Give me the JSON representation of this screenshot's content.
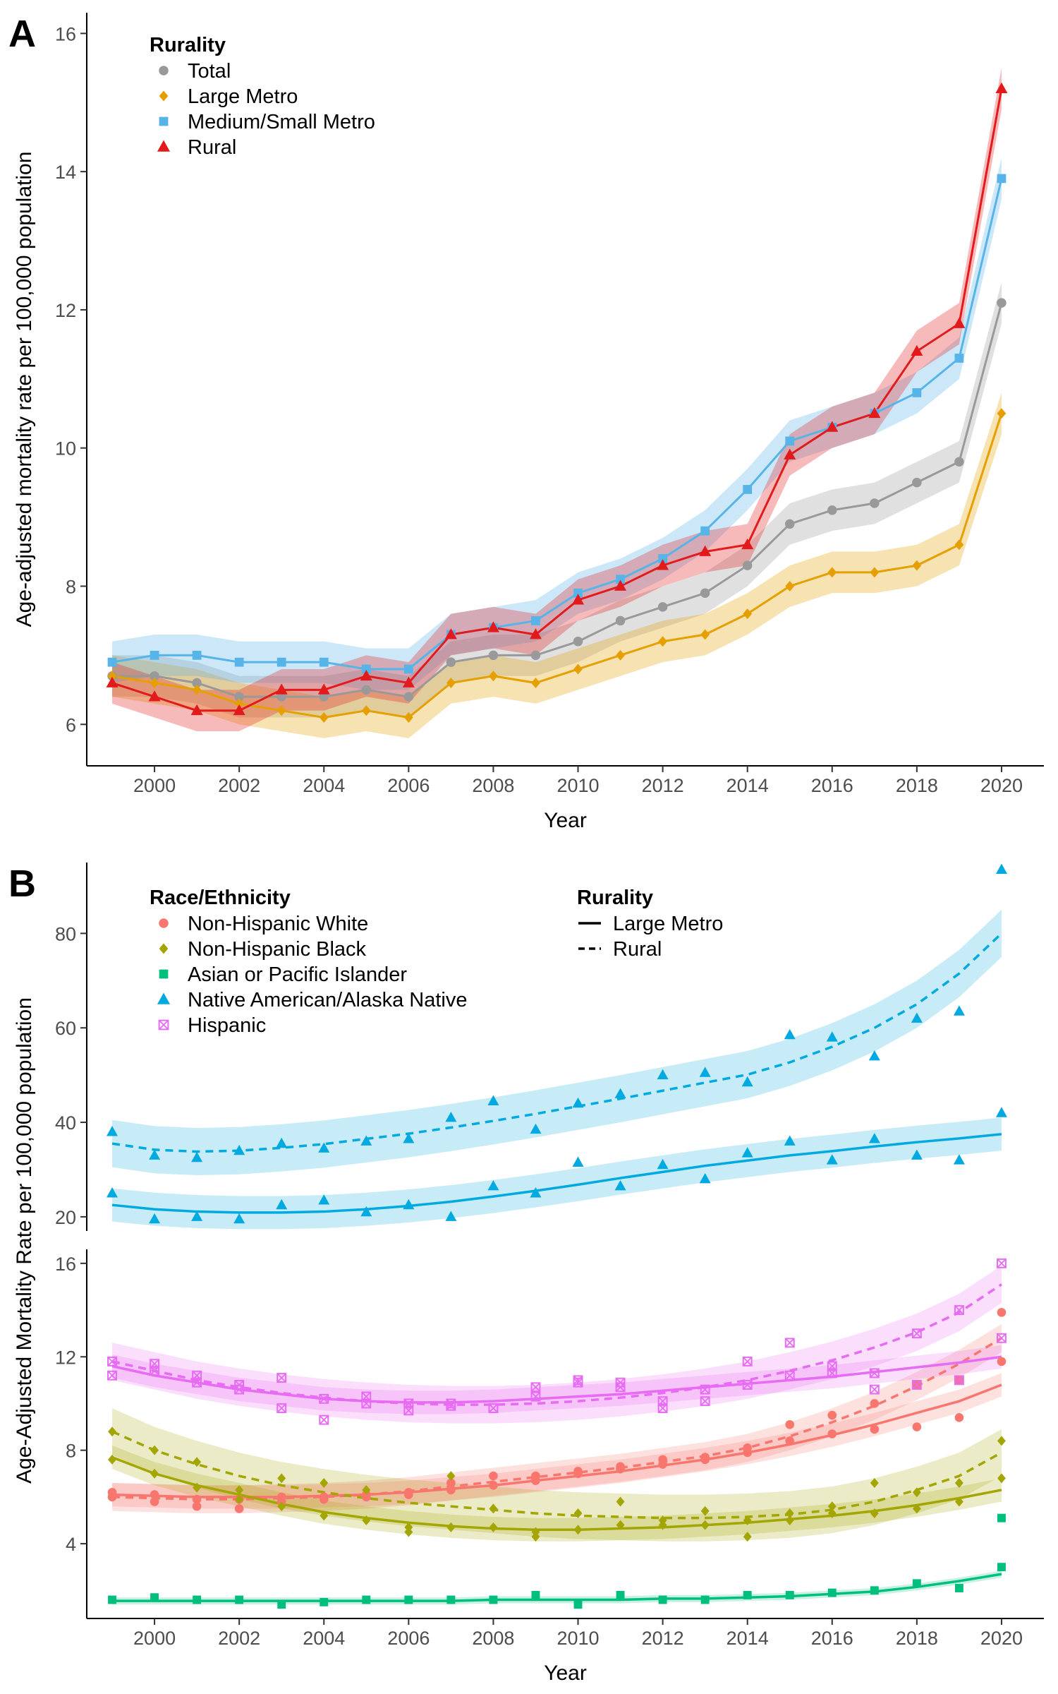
{
  "chart_data": [
    {
      "panel_label": "A",
      "type": "line",
      "xlabel": "Year",
      "ylabel": "Age-adjusted mortality rate per 100,000 population",
      "x": [
        1999,
        2000,
        2001,
        2002,
        2003,
        2004,
        2005,
        2006,
        2007,
        2008,
        2009,
        2010,
        2011,
        2012,
        2013,
        2014,
        2015,
        2016,
        2017,
        2018,
        2019,
        2020
      ],
      "x_ticks": [
        "2000",
        "2002",
        "2004",
        "2006",
        "2008",
        "2010",
        "2012",
        "2014",
        "2016",
        "2018",
        "2020"
      ],
      "y_ticks": [
        "6",
        "8",
        "10",
        "12",
        "14",
        "16"
      ],
      "xlim": [
        1998.4,
        2021
      ],
      "ylim": [
        5.4,
        16.3
      ],
      "band": 0.3,
      "legend_title": "Rurality",
      "series": [
        {
          "name": "Total",
          "color": "#999999",
          "marker": "circle",
          "values": [
            6.7,
            6.7,
            6.6,
            6.4,
            6.4,
            6.4,
            6.5,
            6.4,
            6.9,
            7.0,
            7.0,
            7.2,
            7.5,
            7.7,
            7.9,
            8.3,
            8.9,
            9.1,
            9.2,
            9.5,
            9.8,
            12.1
          ]
        },
        {
          "name": "Large Metro",
          "color": "#E69F00",
          "marker": "diamond",
          "values": [
            6.7,
            6.6,
            6.5,
            6.3,
            6.2,
            6.1,
            6.2,
            6.1,
            6.6,
            6.7,
            6.6,
            6.8,
            7.0,
            7.2,
            7.3,
            7.6,
            8.0,
            8.2,
            8.2,
            8.3,
            8.6,
            10.5
          ]
        },
        {
          "name": "Medium/Small Metro",
          "color": "#56B4E9",
          "marker": "square",
          "values": [
            6.9,
            7.0,
            7.0,
            6.9,
            6.9,
            6.9,
            6.8,
            6.8,
            7.3,
            7.4,
            7.5,
            7.9,
            8.1,
            8.4,
            8.8,
            9.4,
            10.1,
            10.3,
            10.5,
            10.8,
            11.3,
            13.9
          ]
        },
        {
          "name": "Rural",
          "color": "#E31A1C",
          "marker": "triangle",
          "values": [
            6.6,
            6.4,
            6.2,
            6.2,
            6.5,
            6.5,
            6.7,
            6.6,
            7.3,
            7.4,
            7.3,
            7.8,
            8.0,
            8.3,
            8.5,
            8.6,
            9.9,
            10.3,
            10.5,
            11.4,
            11.8,
            15.2
          ]
        }
      ]
    },
    {
      "panel_label": "B",
      "type": "scatter",
      "xlabel": "Year",
      "ylabel": "Age-Adjusted Mortality Rate per 100,000 population",
      "x": [
        1999,
        2000,
        2001,
        2002,
        2003,
        2004,
        2005,
        2006,
        2007,
        2008,
        2009,
        2010,
        2011,
        2012,
        2013,
        2014,
        2015,
        2016,
        2017,
        2018,
        2019,
        2020
      ],
      "x_ticks": [
        "2000",
        "2002",
        "2004",
        "2006",
        "2008",
        "2010",
        "2012",
        "2014",
        "2016",
        "2018",
        "2020"
      ],
      "xlim": [
        1998.4,
        2021
      ],
      "legend_title": "Race/Ethnicity",
      "linetype_legend_title": "Rurality",
      "linetypes": [
        {
          "name": "Large Metro",
          "style": "solid"
        },
        {
          "name": "Rural",
          "style": "dashed"
        }
      ],
      "upper_facet": {
        "ylim": [
          17,
          95
        ],
        "y_ticks": [
          "20",
          "40",
          "60",
          "80"
        ],
        "series": [
          {
            "name": "Native American/Alaska Native",
            "rurality": "Large Metro",
            "color": "#00A9E0",
            "marker": "triangle",
            "values": [
              25,
              19.5,
              20,
              19.5,
              22.5,
              23.5,
              21,
              22.5,
              20,
              26.5,
              25,
              31.5,
              26.5,
              31,
              28,
              33.5,
              36,
              32,
              36.5,
              33,
              32,
              42
            ],
            "fit": [
              22.5,
              21.6,
              21.1,
              20.9,
              20.9,
              21.1,
              21.6,
              22.3,
              23.2,
              24.3,
              25.5,
              26.8,
              28.2,
              29.5,
              30.8,
              31.9,
              33.0,
              33.9,
              34.9,
              35.8,
              36.6,
              37.5
            ],
            "band": 3.5
          },
          {
            "name": "Native American/Alaska Native",
            "rurality": "Rural",
            "color": "#00A9E0",
            "marker": "triangle",
            "values": [
              38,
              33,
              32.5,
              34,
              35.5,
              34.5,
              36,
              36.5,
              41,
              44.5,
              38.5,
              44,
              46,
              50,
              50.5,
              48.5,
              58.5,
              58,
              54,
              62,
              63.5,
              93.5
            ],
            "fit": [
              35.5,
              34.2,
              33.8,
              34.0,
              34.6,
              35.4,
              36.5,
              37.6,
              38.9,
              40.3,
              41.8,
              43.4,
              45.0,
              46.7,
              48.4,
              50.1,
              52.7,
              56.0,
              60.0,
              65.0,
              71.5,
              80.0
            ],
            "band": 5
          }
        ]
      },
      "lower_facet": {
        "ylim": [
          0.8,
          16.6
        ],
        "y_ticks": [
          "4",
          "8",
          "12",
          "16"
        ],
        "series": [
          {
            "name": "Non-Hispanic White",
            "rurality": "Large Metro",
            "color": "#F8766D",
            "marker": "circle",
            "values": [
              6.2,
              6.1,
              5.9,
              5.9,
              6.0,
              6.0,
              6.1,
              6.1,
              6.3,
              6.5,
              6.7,
              7.0,
              7.2,
              7.4,
              7.6,
              7.9,
              8.4,
              8.7,
              8.9,
              9.0,
              9.4,
              11.8
            ],
            "fit": [
              6.1,
              6.05,
              6.0,
              6.0,
              6.0,
              6.05,
              6.1,
              6.2,
              6.35,
              6.5,
              6.7,
              6.9,
              7.1,
              7.35,
              7.6,
              7.9,
              8.25,
              8.65,
              9.1,
              9.6,
              10.1,
              10.8
            ],
            "band": 0.5
          },
          {
            "name": "Non-Hispanic White",
            "rurality": "Rural",
            "color": "#F8766D",
            "marker": "circle",
            "values": [
              6.0,
              5.8,
              5.6,
              5.5,
              5.8,
              5.9,
              6.0,
              6.2,
              6.6,
              6.9,
              6.9,
              7.1,
              7.3,
              7.6,
              7.7,
              8.1,
              9.1,
              9.5,
              10.0,
              10.8,
              11.0,
              13.9
            ],
            "fit": [
              6.0,
              5.95,
              5.9,
              5.9,
              5.95,
              6.0,
              6.1,
              6.25,
              6.45,
              6.65,
              6.85,
              7.05,
              7.25,
              7.5,
              7.75,
              8.1,
              8.6,
              9.2,
              9.9,
              10.75,
              11.7,
              12.8
            ],
            "band": 0.6
          },
          {
            "name": "Non-Hispanic Black",
            "rurality": "Large Metro",
            "color": "#A3A500",
            "marker": "diamond",
            "values": [
              7.6,
              7.0,
              6.4,
              5.9,
              5.6,
              5.2,
              5.0,
              4.7,
              4.7,
              4.7,
              4.5,
              4.6,
              4.8,
              4.8,
              4.8,
              5.0,
              5.0,
              5.3,
              5.3,
              5.5,
              5.8,
              6.8
            ],
            "fit": [
              7.7,
              7.0,
              6.5,
              6.1,
              5.7,
              5.35,
              5.1,
              4.9,
              4.75,
              4.65,
              4.6,
              4.6,
              4.65,
              4.7,
              4.8,
              4.9,
              5.05,
              5.2,
              5.4,
              5.65,
              5.95,
              6.3
            ],
            "band": 0.5
          },
          {
            "name": "Non-Hispanic Black",
            "rurality": "Rural",
            "color": "#A3A500",
            "marker": "diamond",
            "values": [
              8.8,
              8.0,
              7.5,
              6.3,
              6.8,
              6.6,
              6.3,
              4.5,
              6.9,
              5.5,
              4.3,
              5.3,
              5.8,
              5.0,
              5.4,
              4.3,
              5.3,
              5.6,
              6.6,
              6.2,
              6.6,
              8.4
            ],
            "fit": [
              8.8,
              8.0,
              7.4,
              6.9,
              6.5,
              6.2,
              5.95,
              5.75,
              5.6,
              5.45,
              5.3,
              5.2,
              5.15,
              5.1,
              5.1,
              5.15,
              5.25,
              5.45,
              5.8,
              6.3,
              6.9,
              7.9
            ],
            "band": 1.0
          },
          {
            "name": "Asian or Pacific Islander",
            "rurality": "Large Metro",
            "color": "#00BF7D",
            "marker": "square",
            "values": [
              1.6,
              1.7,
              1.6,
              1.6,
              1.4,
              1.5,
              1.6,
              1.6,
              1.6,
              1.6,
              1.8,
              1.4,
              1.8,
              1.6,
              1.6,
              1.8,
              1.8,
              1.9,
              2.0,
              2.3,
              2.1,
              3.0
            ],
            "fit": [
              1.55,
              1.55,
              1.55,
              1.55,
              1.55,
              1.55,
              1.55,
              1.55,
              1.55,
              1.6,
              1.6,
              1.6,
              1.6,
              1.65,
              1.65,
              1.7,
              1.75,
              1.85,
              1.95,
              2.15,
              2.4,
              2.7
            ],
            "band": 0.15
          },
          {
            "name": "Asian or Pacific Islander",
            "rurality": "Rural",
            "color": "#00BF7D",
            "marker": "square",
            "values": [
              null,
              null,
              null,
              null,
              null,
              null,
              null,
              null,
              null,
              null,
              null,
              null,
              null,
              null,
              null,
              null,
              null,
              null,
              null,
              null,
              null,
              5.1
            ],
            "fit": null,
            "band": 0
          },
          {
            "name": "Hispanic",
            "rurality": "Large Metro",
            "color": "#E76BF3",
            "marker": "square-x",
            "values": [
              11.8,
              11.7,
              10.9,
              10.8,
              9.8,
              10.2,
              10.3,
              10.0,
              10.0,
              9.8,
              10.7,
              10.9,
              10.9,
              10.1,
              10.1,
              10.8,
              11.2,
              11.3,
              10.6,
              10.8,
              11.0,
              12.8
            ],
            "fit": [
              11.6,
              11.2,
              10.9,
              10.6,
              10.4,
              10.2,
              10.1,
              10.05,
              10.05,
              10.1,
              10.2,
              10.3,
              10.4,
              10.55,
              10.7,
              10.85,
              11.0,
              11.15,
              11.35,
              11.55,
              11.75,
              12.0
            ],
            "band": 0.5
          },
          {
            "name": "Hispanic",
            "rurality": "Rural",
            "color": "#E76BF3",
            "marker": "square-x",
            "values": [
              11.2,
              11.4,
              11.2,
              10.6,
              11.1,
              9.3,
              10.0,
              9.7,
              9.9,
              9.8,
              10.3,
              11.0,
              10.7,
              9.8,
              10.6,
              11.8,
              12.6,
              11.6,
              11.3,
              13.0,
              14.0,
              16.0
            ],
            "fit": [
              11.8,
              11.4,
              11.0,
              10.7,
              10.45,
              10.25,
              10.1,
              10.0,
              9.95,
              9.95,
              10.0,
              10.1,
              10.25,
              10.45,
              10.7,
              11.0,
              11.4,
              11.85,
              12.4,
              13.05,
              13.9,
              15.1
            ],
            "band": 0.8
          }
        ]
      },
      "legend_entries": [
        {
          "name": "Non-Hispanic White",
          "color": "#F8766D",
          "marker": "circle"
        },
        {
          "name": "Non-Hispanic Black",
          "color": "#A3A500",
          "marker": "diamond"
        },
        {
          "name": "Asian or Pacific Islander",
          "color": "#00BF7D",
          "marker": "square"
        },
        {
          "name": "Native American/Alaska Native",
          "color": "#00A9E0",
          "marker": "triangle"
        },
        {
          "name": "Hispanic",
          "color": "#E76BF3",
          "marker": "square-x"
        }
      ]
    }
  ]
}
